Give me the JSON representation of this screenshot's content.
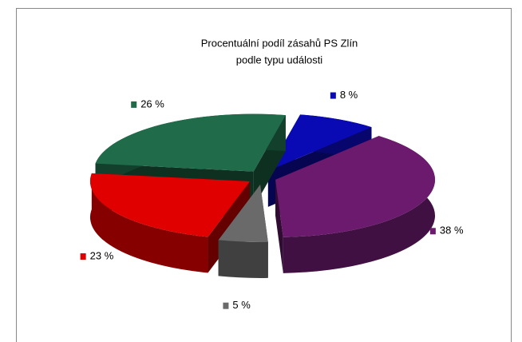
{
  "chart_data": {
    "type": "pie",
    "title": [
      "Procentuální podíl zásahů PS Zlín",
      "podle typu události"
    ],
    "values": [
      26,
      8,
      38,
      5,
      23
    ],
    "value_labels": [
      "26 %",
      "8 %",
      "38 %",
      "5 %",
      "23 %"
    ],
    "colors": [
      "#1f6b4a",
      "#0a0ab4",
      "#6b1a6e",
      "#6a6a6a",
      "#e00000"
    ],
    "three_d": true,
    "exploded": true
  }
}
